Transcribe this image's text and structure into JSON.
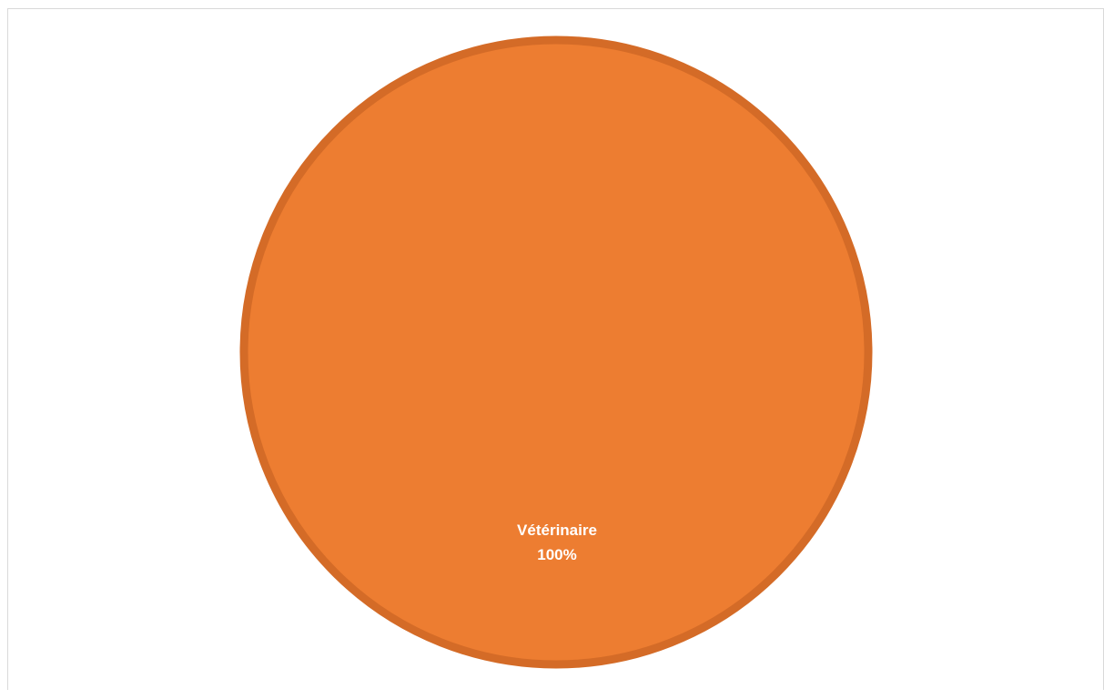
{
  "chart_data": {
    "type": "pie",
    "title": "",
    "slices": [
      {
        "label": "Vétérinaire",
        "value": 100,
        "percent_label": "100%",
        "color": "#ED7D31",
        "border_color": "#D46B27"
      }
    ],
    "legend": "none",
    "data_labels": "category and percentage"
  }
}
